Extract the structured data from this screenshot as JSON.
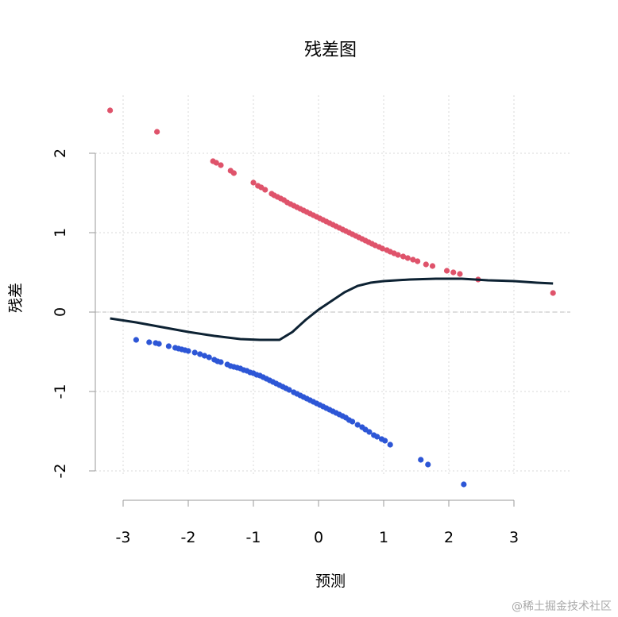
{
  "chart_data": {
    "type": "scatter",
    "title": "残差图",
    "xlabel": "预测",
    "ylabel": "残差",
    "xlim": [
      -3.3,
      3.7
    ],
    "ylim": [
      -2.2,
      2.6
    ],
    "x_ticks": [
      -3,
      -2,
      -1,
      0,
      1,
      2,
      3
    ],
    "y_ticks": [
      -2,
      -1,
      0,
      1,
      2
    ],
    "grid": true,
    "reference_line_y": 0,
    "series": [
      {
        "color": "#df536b",
        "points": [
          [
            -3.2,
            2.54
          ],
          [
            -2.48,
            2.27
          ],
          [
            -1.62,
            1.9
          ],
          [
            -1.57,
            1.88
          ],
          [
            -1.5,
            1.85
          ],
          [
            -1.35,
            1.78
          ],
          [
            -1.3,
            1.75
          ],
          [
            -1.0,
            1.63
          ],
          [
            -0.93,
            1.59
          ],
          [
            -0.88,
            1.57
          ],
          [
            -0.82,
            1.54
          ],
          [
            -0.72,
            1.49
          ],
          [
            -0.68,
            1.47
          ],
          [
            -0.63,
            1.45
          ],
          [
            -0.58,
            1.43
          ],
          [
            -0.53,
            1.41
          ],
          [
            -0.48,
            1.38
          ],
          [
            -0.43,
            1.36
          ],
          [
            -0.38,
            1.34
          ],
          [
            -0.33,
            1.32
          ],
          [
            -0.28,
            1.3
          ],
          [
            -0.23,
            1.28
          ],
          [
            -0.18,
            1.26
          ],
          [
            -0.13,
            1.24
          ],
          [
            -0.08,
            1.22
          ],
          [
            -0.03,
            1.2
          ],
          [
            0.02,
            1.18
          ],
          [
            0.07,
            1.16
          ],
          [
            0.12,
            1.14
          ],
          [
            0.17,
            1.12
          ],
          [
            0.22,
            1.1
          ],
          [
            0.27,
            1.08
          ],
          [
            0.32,
            1.06
          ],
          [
            0.37,
            1.04
          ],
          [
            0.42,
            1.02
          ],
          [
            0.47,
            1.0
          ],
          [
            0.52,
            0.98
          ],
          [
            0.57,
            0.96
          ],
          [
            0.62,
            0.94
          ],
          [
            0.67,
            0.92
          ],
          [
            0.72,
            0.9
          ],
          [
            0.77,
            0.88
          ],
          [
            0.82,
            0.86
          ],
          [
            0.87,
            0.84
          ],
          [
            0.93,
            0.82
          ],
          [
            0.98,
            0.8
          ],
          [
            1.05,
            0.78
          ],
          [
            1.1,
            0.76
          ],
          [
            1.16,
            0.74
          ],
          [
            1.22,
            0.72
          ],
          [
            1.3,
            0.7
          ],
          [
            1.37,
            0.68
          ],
          [
            1.45,
            0.66
          ],
          [
            1.52,
            0.64
          ],
          [
            1.65,
            0.6
          ],
          [
            1.75,
            0.58
          ],
          [
            1.97,
            0.52
          ],
          [
            2.07,
            0.5
          ],
          [
            2.17,
            0.48
          ],
          [
            2.45,
            0.41
          ],
          [
            3.6,
            0.24
          ]
        ]
      },
      {
        "color": "#2d56d6",
        "points": [
          [
            -2.8,
            -0.35
          ],
          [
            -2.6,
            -0.38
          ],
          [
            -2.5,
            -0.39
          ],
          [
            -2.45,
            -0.4
          ],
          [
            -2.3,
            -0.43
          ],
          [
            -2.2,
            -0.45
          ],
          [
            -2.15,
            -0.46
          ],
          [
            -2.1,
            -0.47
          ],
          [
            -2.05,
            -0.48
          ],
          [
            -2.0,
            -0.49
          ],
          [
            -1.9,
            -0.51
          ],
          [
            -1.82,
            -0.53
          ],
          [
            -1.75,
            -0.55
          ],
          [
            -1.68,
            -0.57
          ],
          [
            -1.6,
            -0.6
          ],
          [
            -1.55,
            -0.62
          ],
          [
            -1.5,
            -0.63
          ],
          [
            -1.4,
            -0.66
          ],
          [
            -1.35,
            -0.68
          ],
          [
            -1.3,
            -0.69
          ],
          [
            -1.25,
            -0.7
          ],
          [
            -1.2,
            -0.71
          ],
          [
            -1.15,
            -0.73
          ],
          [
            -1.1,
            -0.74
          ],
          [
            -1.05,
            -0.76
          ],
          [
            -1.0,
            -0.77
          ],
          [
            -0.95,
            -0.79
          ],
          [
            -0.9,
            -0.8
          ],
          [
            -0.85,
            -0.82
          ],
          [
            -0.8,
            -0.84
          ],
          [
            -0.75,
            -0.86
          ],
          [
            -0.7,
            -0.88
          ],
          [
            -0.65,
            -0.9
          ],
          [
            -0.6,
            -0.92
          ],
          [
            -0.55,
            -0.94
          ],
          [
            -0.5,
            -0.96
          ],
          [
            -0.45,
            -0.98
          ],
          [
            -0.38,
            -1.01
          ],
          [
            -0.33,
            -1.03
          ],
          [
            -0.28,
            -1.05
          ],
          [
            -0.23,
            -1.07
          ],
          [
            -0.18,
            -1.09
          ],
          [
            -0.13,
            -1.11
          ],
          [
            -0.08,
            -1.13
          ],
          [
            -0.03,
            -1.15
          ],
          [
            0.02,
            -1.17
          ],
          [
            0.07,
            -1.19
          ],
          [
            0.12,
            -1.21
          ],
          [
            0.17,
            -1.23
          ],
          [
            0.22,
            -1.25
          ],
          [
            0.27,
            -1.27
          ],
          [
            0.32,
            -1.29
          ],
          [
            0.37,
            -1.31
          ],
          [
            0.42,
            -1.33
          ],
          [
            0.47,
            -1.36
          ],
          [
            0.52,
            -1.38
          ],
          [
            0.6,
            -1.42
          ],
          [
            0.67,
            -1.45
          ],
          [
            0.72,
            -1.48
          ],
          [
            0.78,
            -1.51
          ],
          [
            0.85,
            -1.55
          ],
          [
            0.9,
            -1.57
          ],
          [
            0.97,
            -1.6
          ],
          [
            1.02,
            -1.62
          ],
          [
            1.1,
            -1.67
          ],
          [
            1.57,
            -1.86
          ],
          [
            1.68,
            -1.92
          ],
          [
            2.23,
            -2.17
          ]
        ]
      }
    ],
    "smooth_line": {
      "color": "#0d2233",
      "points": [
        [
          -3.2,
          -0.08
        ],
        [
          -2.8,
          -0.13
        ],
        [
          -2.4,
          -0.19
        ],
        [
          -2.0,
          -0.25
        ],
        [
          -1.6,
          -0.3
        ],
        [
          -1.2,
          -0.34
        ],
        [
          -0.9,
          -0.35
        ],
        [
          -0.6,
          -0.35
        ],
        [
          -0.4,
          -0.25
        ],
        [
          -0.2,
          -0.1
        ],
        [
          0.0,
          0.03
        ],
        [
          0.2,
          0.14
        ],
        [
          0.4,
          0.25
        ],
        [
          0.6,
          0.33
        ],
        [
          0.8,
          0.37
        ],
        [
          1.0,
          0.39
        ],
        [
          1.4,
          0.41
        ],
        [
          1.8,
          0.42
        ],
        [
          2.2,
          0.42
        ],
        [
          2.6,
          0.4
        ],
        [
          3.0,
          0.39
        ],
        [
          3.35,
          0.37
        ],
        [
          3.6,
          0.36
        ]
      ]
    }
  },
  "watermark": "@稀土掘金技术社区"
}
